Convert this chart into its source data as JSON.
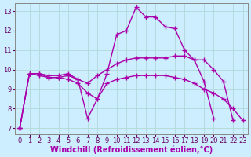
{
  "background_color": "#cceeff",
  "grid_color": "#b0d8d8",
  "line_color": "#aa00aa",
  "marker": "+",
  "markersize": 4,
  "linewidth": 1.0,
  "xlabel": "Windchill (Refroidissement éolien,°C)",
  "xlabel_fontsize": 7,
  "tick_fontsize": 6,
  "xlim": [
    -0.5,
    23.5
  ],
  "ylim": [
    6.7,
    13.4
  ],
  "yticks": [
    7,
    8,
    9,
    10,
    11,
    12,
    13
  ],
  "xticks": [
    0,
    1,
    2,
    3,
    4,
    5,
    6,
    7,
    8,
    9,
    10,
    11,
    12,
    13,
    14,
    15,
    16,
    17,
    18,
    19,
    20,
    21,
    22,
    23
  ],
  "line1_x": [
    0,
    1,
    2,
    3,
    4,
    5,
    6,
    7,
    8,
    9,
    10,
    11,
    12,
    13,
    14,
    15,
    16,
    17,
    18,
    19,
    20
  ],
  "line1_y": [
    7.0,
    9.8,
    9.8,
    9.7,
    9.7,
    9.8,
    9.5,
    7.5,
    8.5,
    9.8,
    11.8,
    12.0,
    13.2,
    12.7,
    12.7,
    12.2,
    12.1,
    11.0,
    10.5,
    9.4,
    7.5
  ],
  "line2_x": [
    0,
    1,
    2,
    3,
    4,
    5,
    6,
    7,
    8,
    9,
    10,
    11,
    12,
    13,
    14,
    15,
    16,
    17,
    18,
    19,
    20,
    21,
    22
  ],
  "line2_y": [
    7.0,
    9.8,
    9.8,
    9.6,
    9.6,
    9.7,
    9.5,
    9.3,
    9.7,
    10.0,
    10.3,
    10.5,
    10.6,
    10.6,
    10.6,
    10.6,
    10.7,
    10.7,
    10.5,
    10.5,
    10.0,
    9.4,
    7.4
  ],
  "line3_x": [
    0,
    1,
    2,
    3,
    4,
    5,
    6,
    7,
    8,
    9,
    10,
    11,
    12,
    13,
    14,
    15,
    16,
    17,
    18,
    19,
    20,
    21,
    22,
    23
  ],
  "line3_y": [
    7.0,
    9.8,
    9.7,
    9.6,
    9.6,
    9.5,
    9.3,
    8.8,
    8.5,
    9.3,
    9.5,
    9.6,
    9.7,
    9.7,
    9.7,
    9.7,
    9.6,
    9.5,
    9.3,
    9.0,
    8.8,
    8.5,
    8.0,
    7.4
  ]
}
